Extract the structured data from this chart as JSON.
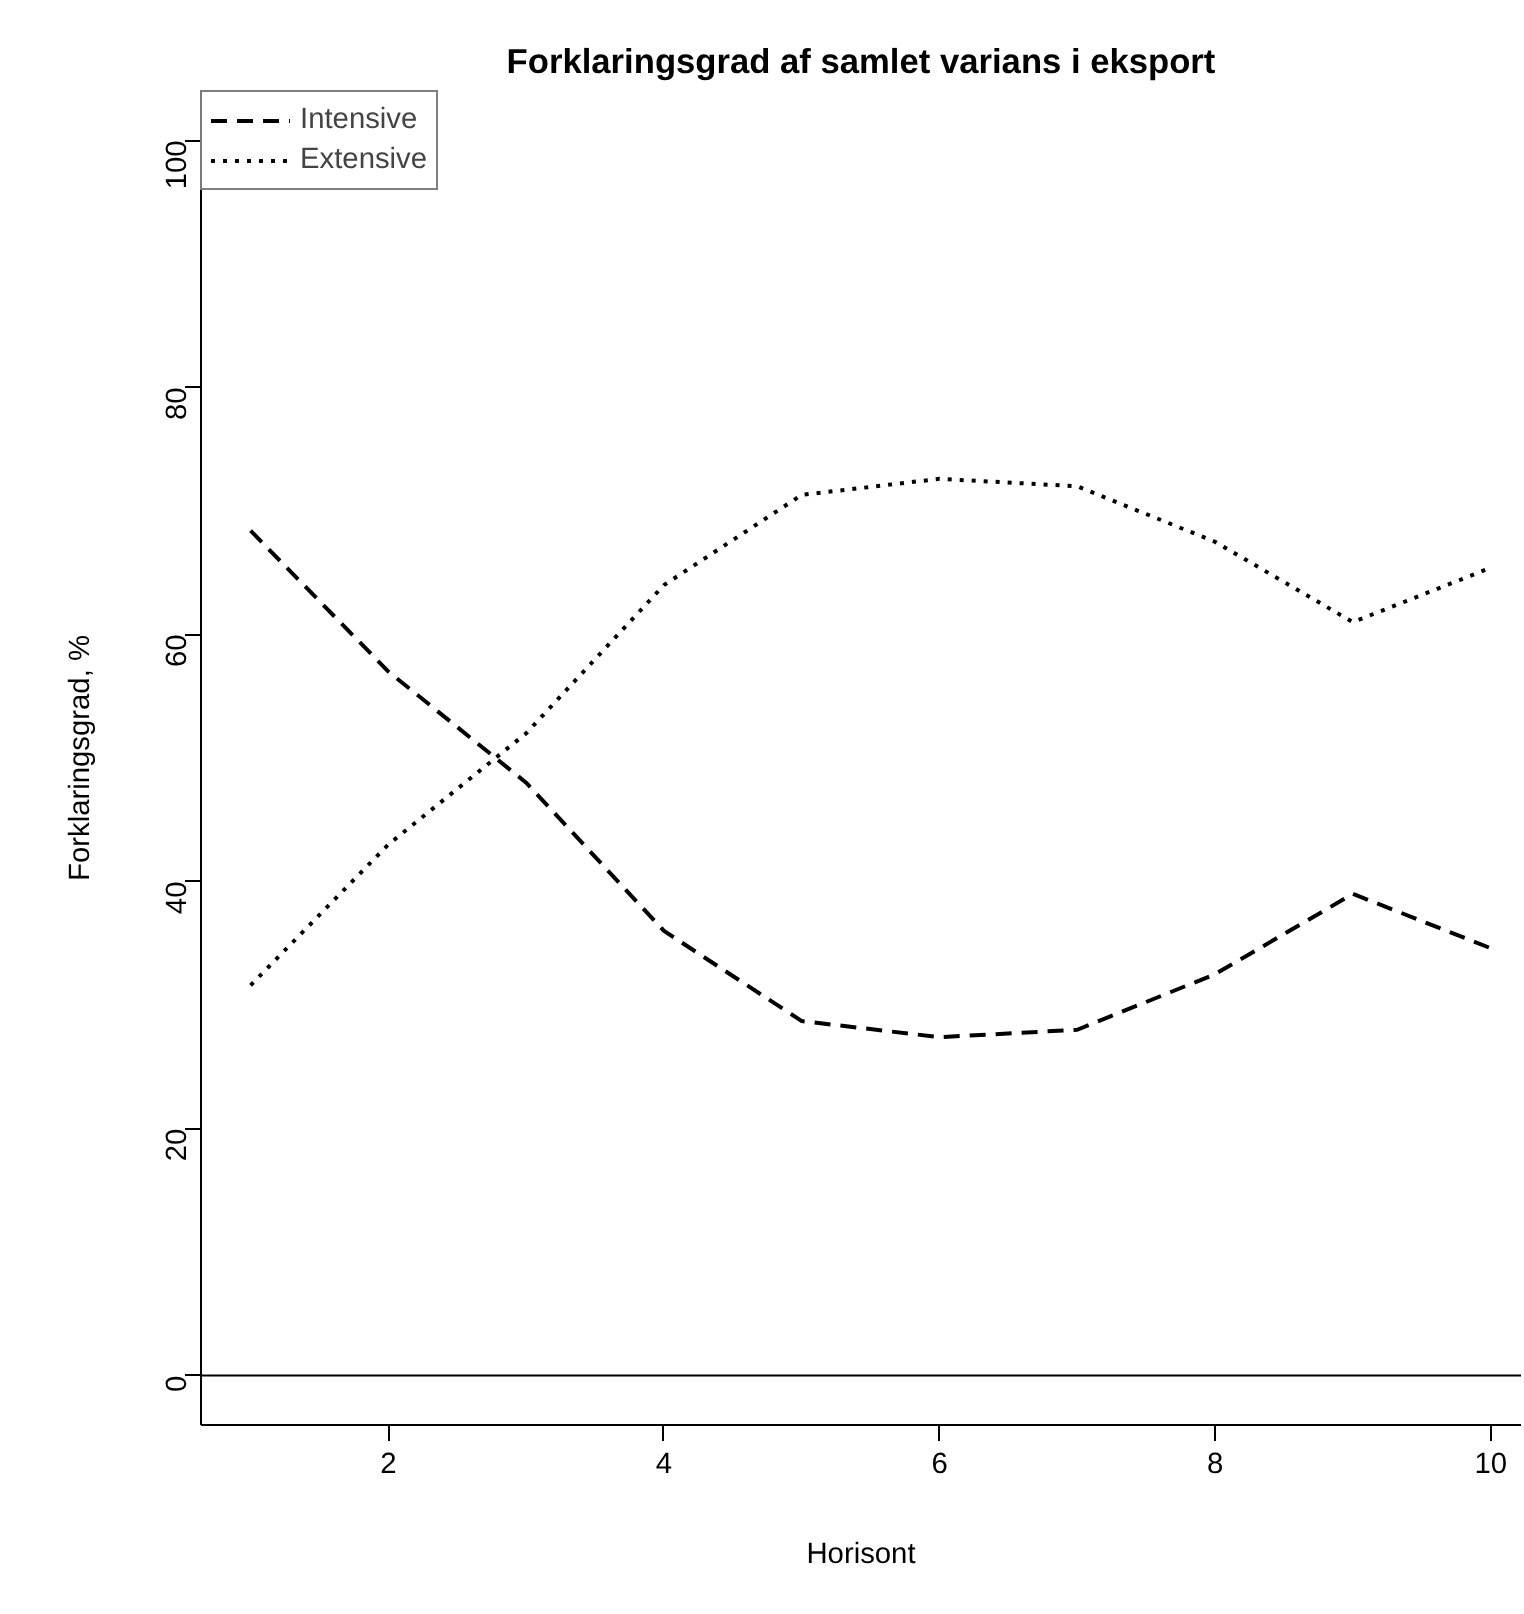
{
  "chart_data": {
    "type": "line",
    "title": "Forklaringsgrad af samlet varians i eksport",
    "xlabel": "Horisont",
    "ylabel": "Forklaringsgrad, %",
    "x": [
      1,
      2,
      3,
      4,
      5,
      6,
      7,
      8,
      9,
      10
    ],
    "series": [
      {
        "name": "Intensive",
        "color": "#000000",
        "line_style": "dashed",
        "values": [
          68.4,
          57,
          48,
          36,
          28.7,
          27.4,
          28,
          32.5,
          39,
          34.6
        ]
      },
      {
        "name": "Extensive",
        "color": "#000000",
        "line_style": "dotted",
        "values": [
          31.6,
          43,
          52,
          64,
          71.3,
          72.6,
          72,
          67.5,
          61,
          65.4
        ]
      }
    ],
    "xlim": [
      0.64,
      10.22
    ],
    "ylim": [
      -4,
      104
    ],
    "xticks": [
      2,
      4,
      6,
      8,
      10
    ],
    "yticks": [
      0,
      20,
      40,
      60,
      80,
      100
    ],
    "ref_lines": [
      {
        "axis": "y",
        "value": 0,
        "color": "#000000"
      }
    ],
    "legend": "top left",
    "grid": false,
    "marker": "none"
  }
}
